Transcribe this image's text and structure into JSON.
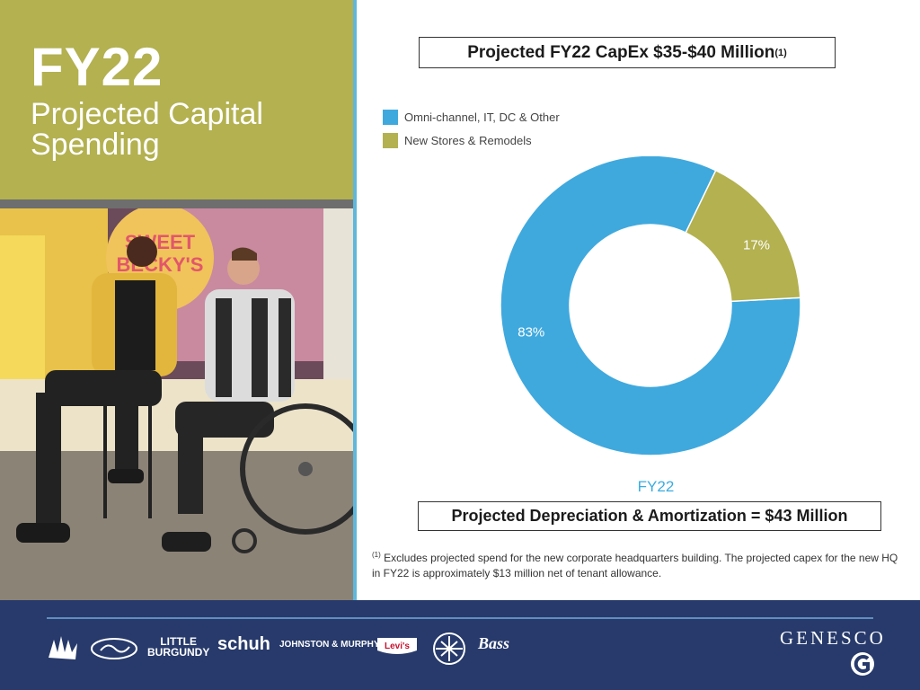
{
  "title": {
    "main": "FY22",
    "sub": "Projected Capital Spending"
  },
  "capex_box": {
    "text": "Projected FY22 CapEx $35-$40 Million",
    "footnote_marker": "(1)"
  },
  "legend": [
    {
      "label": "Omni-channel, IT, DC & Other",
      "color": "#3fa9de"
    },
    {
      "label": "New Stores & Remodels",
      "color": "#b3b150"
    }
  ],
  "chart_data": {
    "type": "pie",
    "categories": [
      "FY22"
    ],
    "series": [
      {
        "name": "Omni-channel, IT, DC & Other",
        "values": [
          83
        ],
        "label": "83%",
        "color": "#3fa9de"
      },
      {
        "name": "New Stores & Remodels",
        "values": [
          17
        ],
        "label": "17%",
        "color": "#b3b150"
      }
    ],
    "title": "Projected FY22 CapEx $35-$40 Million",
    "xlabel": "",
    "ylabel": "",
    "donut": true,
    "legend_position": "top-left"
  },
  "da_box": {
    "text": "Projected Depreciation & Amortization = $43 Million"
  },
  "footnote": {
    "marker": "(1)",
    "text": " Excludes projected spend for the new corporate headquarters building.  The projected capex for the new HQ in FY22 is approximately $13 million net of tenant allowance."
  },
  "photo": {
    "sign_line1": "SWEET",
    "sign_line2": "BECKY'S"
  },
  "footer": {
    "brands": {
      "little_line1": "LITTLE",
      "little_line2": "BURGUNDY",
      "schuh": "schuh",
      "johnston_murphy": "JOHNSTON & MURPHY.",
      "levis": "Levi's",
      "bass": "Bass"
    },
    "company": "GENESCO"
  },
  "colors": {
    "olive": "#b3b150",
    "blue": "#3fa9de",
    "navy": "#273a6b"
  }
}
